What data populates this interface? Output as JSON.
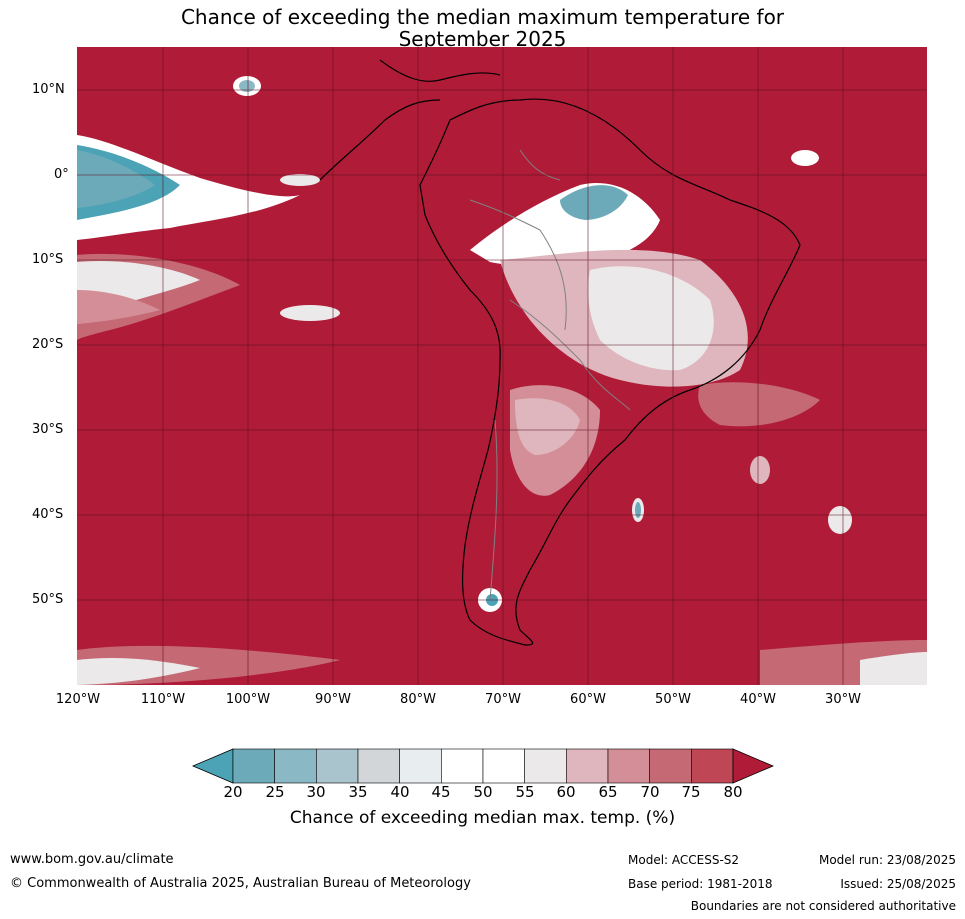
{
  "title": {
    "line1": "Chance of exceeding the median maximum temperature for",
    "line2": "September 2025"
  },
  "map": {
    "lat_labels": [
      "10°N",
      "0°",
      "10°S",
      "20°S",
      "30°S",
      "40°S",
      "50°S"
    ],
    "lon_labels": [
      "120°W",
      "110°W",
      "100°W",
      "90°W",
      "80°W",
      "70°W",
      "60°W",
      "50°W",
      "40°W",
      "30°W"
    ],
    "background_color": "#b01c37"
  },
  "colorbar": {
    "labels": [
      "20",
      "25",
      "30",
      "35",
      "40",
      "45",
      "50",
      "55",
      "60",
      "65",
      "70",
      "75",
      "80"
    ],
    "colors": [
      "#4ba3b5",
      "#6daab9",
      "#8bb8c5",
      "#a9c4cd",
      "#d2d6d9",
      "#e8eef0",
      "#ffffff",
      "#ffffff",
      "#ebe9ea",
      "#dfb6bd",
      "#d48e98",
      "#c56a75",
      "#bf4655",
      "#b01c37"
    ],
    "caption": "Chance of exceeding median max. temp. (%)"
  },
  "footer": {
    "website": "www.bom.gov.au/climate",
    "copyright": "© Commonwealth of Australia 2025, Australian Bureau of Meteorology",
    "model": "Model: ACCESS-S2",
    "base_period": "Base period: 1981-2018",
    "model_run": "Model run: 23/08/2025",
    "issued": "Issued: 25/08/2025",
    "disclaimer": "Boundaries are not considered authoritative"
  }
}
